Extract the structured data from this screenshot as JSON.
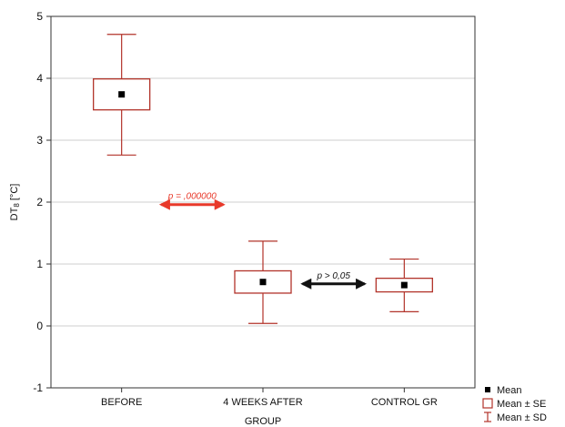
{
  "chart_data": {
    "type": "box",
    "title": "",
    "xlabel": "GROUP",
    "ylabel": "DT",
    "ylabel_sub": "8",
    "ylabel_unit": " [°C]",
    "ylim": [
      -1,
      5
    ],
    "yticks": [
      "5",
      "4",
      "3",
      "2",
      "1",
      "0",
      "-1"
    ],
    "ytick_values": [
      5,
      4,
      3,
      2,
      1,
      0,
      -1
    ],
    "grid": true,
    "categories": [
      "BEFORE",
      "4 WEEKS AFTER",
      "CONTROL GR"
    ],
    "series": [
      {
        "stats": [
          {
            "mean": 3.74,
            "se_low": 3.49,
            "se_high": 3.99,
            "sd_low": 2.76,
            "sd_high": 4.71
          },
          {
            "mean": 0.71,
            "se_low": 0.53,
            "se_high": 0.89,
            "sd_low": 0.04,
            "sd_high": 1.37
          },
          {
            "mean": 0.66,
            "se_low": 0.55,
            "se_high": 0.77,
            "sd_low": 0.23,
            "sd_high": 1.08
          }
        ]
      }
    ],
    "annotations": [
      {
        "text": "p = ,000000",
        "color": "#e8392a",
        "from_category": 0,
        "to_category": 1,
        "y": 1.96
      },
      {
        "text": "p > 0,05",
        "color": "#111111",
        "from_category": 1,
        "to_category": 2,
        "y": 0.68
      }
    ],
    "legend": {
      "position": "bottom-right",
      "entries": [
        {
          "label": "Mean",
          "symbol": "square-marker"
        },
        {
          "label": "Mean ± SE",
          "symbol": "box"
        },
        {
          "label": "Mean ± SD",
          "symbol": "whisker"
        }
      ]
    },
    "colors": {
      "box": "#b2332a",
      "marker": "#000000",
      "grid": "#cfcfcf"
    }
  }
}
